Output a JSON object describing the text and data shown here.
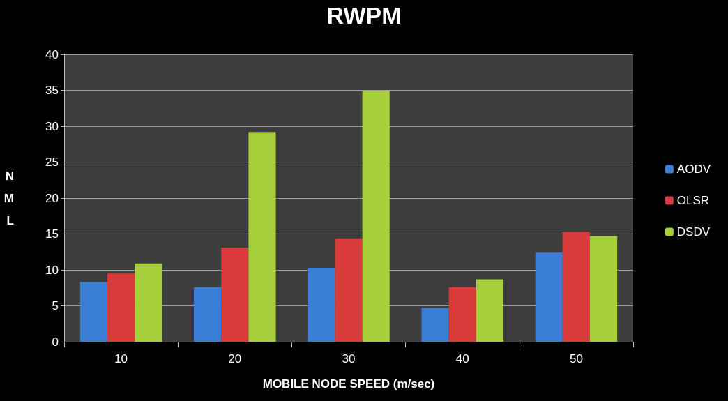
{
  "chart_data": {
    "type": "bar",
    "title": "RWPM",
    "xlabel": "MOBILE NODE SPEED (m/sec)",
    "ylabel": "NML",
    "categories": [
      "10",
      "20",
      "30",
      "40",
      "50"
    ],
    "series": [
      {
        "name": "AODV",
        "color": "#3b7ed6",
        "values": [
          8.3,
          7.6,
          10.3,
          4.7,
          12.4
        ]
      },
      {
        "name": "OLSR",
        "color": "#d93a3a",
        "values": [
          9.5,
          13.1,
          14.4,
          7.6,
          15.3
        ]
      },
      {
        "name": "DSDV",
        "color": "#a6cf3a",
        "values": [
          10.9,
          29.2,
          34.9,
          8.7,
          14.7
        ]
      }
    ],
    "ylim": [
      0,
      40
    ],
    "yticks": [
      0,
      5,
      10,
      15,
      20,
      25,
      30,
      35,
      40
    ],
    "grid": "y",
    "legend": "right"
  }
}
